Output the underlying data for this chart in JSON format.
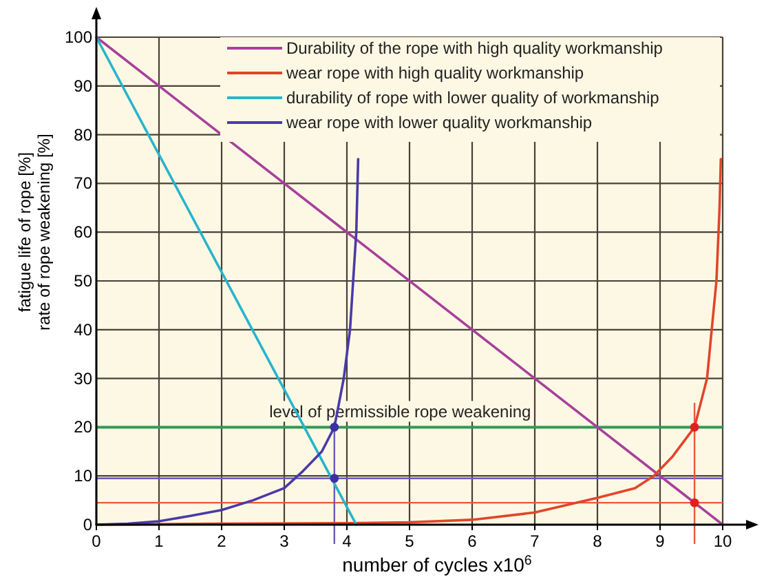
{
  "chart_data": {
    "type": "line",
    "xlabel": "number of cycles x10$^{6}$",
    "ylabel": "fatigue life of rope [%]\nrate of rope weakening [%]",
    "xlim": [
      0,
      10
    ],
    "ylim": [
      0,
      100
    ],
    "xticks": [
      0,
      1,
      2,
      3,
      4,
      5,
      6,
      7,
      8,
      9,
      10
    ],
    "yticks": [
      0,
      10,
      20,
      30,
      40,
      50,
      60,
      70,
      80,
      90,
      100
    ],
    "grid": true,
    "legend": "top right",
    "marker": "none",
    "line_style": "solid",
    "series": [
      {
        "name": "Durability of the rope with high quality workmanship",
        "color": "#a8409c",
        "x": [
          0,
          10
        ],
        "values": [
          100,
          0
        ]
      },
      {
        "name": "wear rope with high quality workmanship",
        "color": "#e2452a",
        "x": [
          0,
          2,
          4,
          5,
          6,
          7,
          8,
          8.6,
          8.9,
          9.2,
          9.55,
          9.75,
          9.9,
          9.95,
          9.97
        ],
        "values": [
          0,
          0.2,
          0.3,
          0.5,
          1,
          2.5,
          5.5,
          7.5,
          10,
          14,
          20,
          30,
          50,
          65,
          75
        ]
      },
      {
        "name": "durability of rope with lower quality of workmanship",
        "color": "#28b4cc",
        "x": [
          0,
          4.15
        ],
        "values": [
          100,
          0
        ]
      },
      {
        "name": "wear rope with lower quality workmanship",
        "color": "#4a3aa8",
        "x": [
          0,
          0.5,
          1,
          1.5,
          2,
          2.5,
          3,
          3.3,
          3.6,
          3.8,
          3.95,
          4.05,
          4.1,
          4.15,
          4.18
        ],
        "values": [
          0,
          0.2,
          0.7,
          1.8,
          3,
          5,
          7.5,
          11,
          15,
          20,
          30,
          40,
          50,
          60,
          75
        ]
      },
      {
        "type": "scatter",
        "marker": "circle",
        "color": "#3a30a0",
        "x": [
          3.8,
          3.8
        ],
        "values": [
          20,
          9.5
        ]
      },
      {
        "type": "scatter",
        "marker": "circle",
        "color": "#e02020",
        "x": [
          9.55,
          9.55
        ],
        "values": [
          20,
          4.5
        ]
      }
    ],
    "ref_lines": [
      {
        "axis": "y",
        "value": 20,
        "label": "level of permissible rope weakening",
        "color": "#2e9a55"
      },
      {
        "axis": "y",
        "value": 9.5,
        "color": "#6a5ab8"
      },
      {
        "axis": "y",
        "value": 4.5,
        "color": "#e85a3a"
      },
      {
        "axis": "x",
        "value": 3.8,
        "color": "#6a5ab8"
      },
      {
        "axis": "x",
        "value": 9.55,
        "color": "#e85a3a"
      }
    ]
  }
}
